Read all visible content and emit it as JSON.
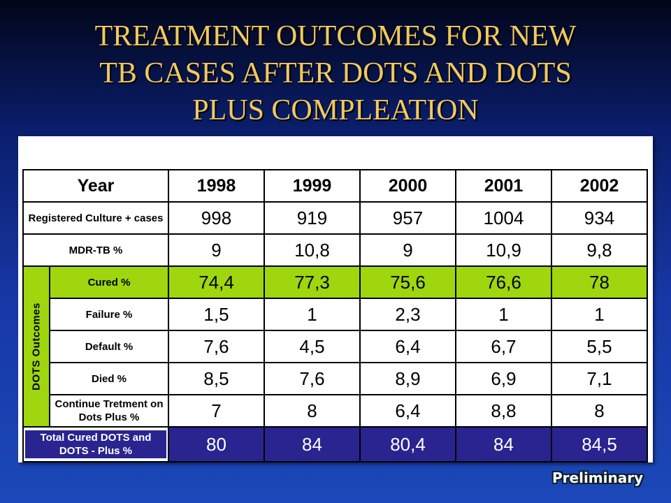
{
  "title_lines": [
    "TREATMENT OUTCOMES FOR NEW",
    "TB CASES AFTER DOTS AND DOTS",
    "PLUS COMPLEATION"
  ],
  "table": {
    "header_label": "Year",
    "years": [
      "1998",
      "1999",
      "2000",
      "2001",
      "2002"
    ],
    "side_label": "DOTS Outcomes",
    "top_rows": [
      {
        "label": "Registered Culture + cases",
        "values": [
          "998",
          "919",
          "957",
          "1004",
          "934"
        ]
      },
      {
        "label": "MDR-TB %",
        "values": [
          "9",
          "10,8",
          "9",
          "10,9",
          "9,8"
        ]
      }
    ],
    "outcome_rows": [
      {
        "label": "Cured %",
        "values": [
          "74,4",
          "77,3",
          "75,6",
          "76,6",
          "78"
        ]
      },
      {
        "label": "Failure %",
        "values": [
          "1,5",
          "1",
          "2,3",
          "1",
          "1"
        ]
      },
      {
        "label": "Default %",
        "values": [
          "7,6",
          "4,5",
          "6,4",
          "6,7",
          "5,5"
        ]
      },
      {
        "label": "Died %",
        "values": [
          "8,5",
          "7,6",
          "8,9",
          "6,9",
          "7,1"
        ]
      },
      {
        "label": "Continue Tretment on Dots Plus %",
        "values": [
          "7",
          "8",
          "6,4",
          "8,8",
          "8"
        ]
      }
    ],
    "total_row": {
      "label": "Total Cured DOTS and DOTS - Plus %",
      "values": [
        "80",
        "84",
        "80,4",
        "84",
        "84,5"
      ]
    }
  },
  "badge": "Preliminary",
  "colors": {
    "title_text": "#f1c95f",
    "side_strip": "#f7c800",
    "cured_row": "#9fd60e",
    "total_row": "#2a2490"
  }
}
